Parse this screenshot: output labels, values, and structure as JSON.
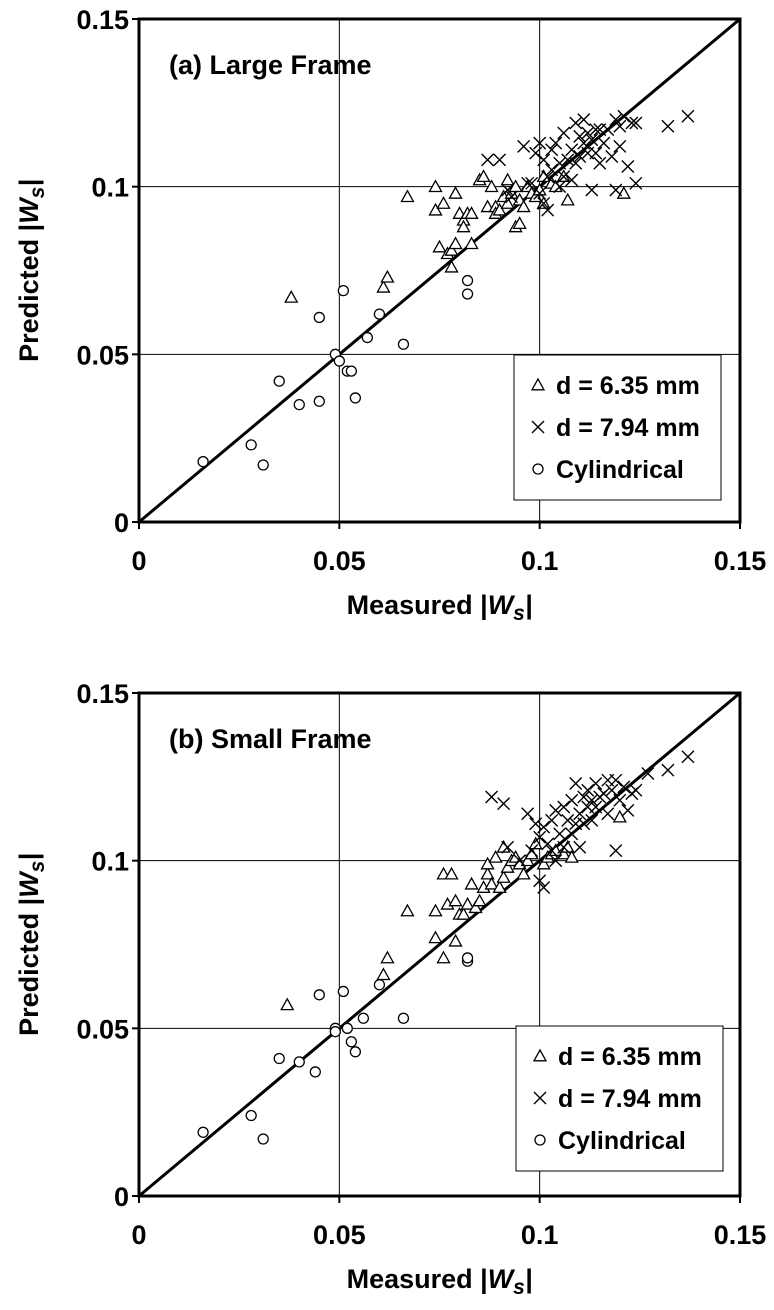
{
  "chart_data": [
    {
      "type": "scatter",
      "title": "(a) Large Frame",
      "xlabel_main": "Measured |",
      "xlabel_var": "W",
      "xlabel_sub": "s",
      "xlabel_end": "|",
      "ylabel_main": "Predicted |",
      "ylabel_var": "W",
      "ylabel_sub": "s",
      "ylabel_end": "|",
      "xlim": [
        0,
        0.15
      ],
      "ylim": [
        0,
        0.15
      ],
      "xticks": [
        "0",
        "0.05",
        "0.1",
        "0.15"
      ],
      "yticks": [
        "0",
        "0.05",
        "0.1",
        "0.15"
      ],
      "grid": "lines at 0.05 and 0.1",
      "reference_line": "y = x",
      "legend_position": "lower-right",
      "series": [
        {
          "name": "d = 6.35 mm",
          "marker": "triangle",
          "points": [
            [
              0.038,
              0.067
            ],
            [
              0.061,
              0.07
            ],
            [
              0.062,
              0.073
            ],
            [
              0.067,
              0.097
            ],
            [
              0.074,
              0.1
            ],
            [
              0.074,
              0.093
            ],
            [
              0.075,
              0.082
            ],
            [
              0.076,
              0.095
            ],
            [
              0.077,
              0.08
            ],
            [
              0.078,
              0.081
            ],
            [
              0.078,
              0.076
            ],
            [
              0.079,
              0.098
            ],
            [
              0.079,
              0.083
            ],
            [
              0.08,
              0.092
            ],
            [
              0.081,
              0.09
            ],
            [
              0.081,
              0.088
            ],
            [
              0.082,
              0.092
            ],
            [
              0.083,
              0.092
            ],
            [
              0.083,
              0.083
            ],
            [
              0.085,
              0.102
            ],
            [
              0.086,
              0.103
            ],
            [
              0.087,
              0.094
            ],
            [
              0.088,
              0.1
            ],
            [
              0.089,
              0.094
            ],
            [
              0.089,
              0.092
            ],
            [
              0.09,
              0.093
            ],
            [
              0.091,
              0.097
            ],
            [
              0.092,
              0.102
            ],
            [
              0.092,
              0.095
            ],
            [
              0.093,
              0.098
            ],
            [
              0.094,
              0.1
            ],
            [
              0.094,
              0.088
            ],
            [
              0.095,
              0.089
            ],
            [
              0.095,
              0.096
            ],
            [
              0.096,
              0.094
            ],
            [
              0.097,
              0.1
            ],
            [
              0.098,
              0.098
            ],
            [
              0.099,
              0.097
            ],
            [
              0.1,
              0.099
            ],
            [
              0.101,
              0.095
            ],
            [
              0.101,
              0.103
            ],
            [
              0.103,
              0.101
            ],
            [
              0.104,
              0.1
            ],
            [
              0.106,
              0.103
            ],
            [
              0.107,
              0.096
            ],
            [
              0.121,
              0.098
            ]
          ]
        },
        {
          "name": "d = 7.94 mm",
          "marker": "x",
          "points": [
            [
              0.087,
              0.108
            ],
            [
              0.09,
              0.108
            ],
            [
              0.092,
              0.099
            ],
            [
              0.093,
              0.097
            ],
            [
              0.096,
              0.112
            ],
            [
              0.097,
              0.101
            ],
            [
              0.098,
              0.101
            ],
            [
              0.099,
              0.11
            ],
            [
              0.1,
              0.098
            ],
            [
              0.1,
              0.113
            ],
            [
              0.101,
              0.095
            ],
            [
              0.101,
              0.108
            ],
            [
              0.102,
              0.093
            ],
            [
              0.102,
              0.103
            ],
            [
              0.103,
              0.111
            ],
            [
              0.103,
              0.105
            ],
            [
              0.104,
              0.113
            ],
            [
              0.105,
              0.1
            ],
            [
              0.105,
              0.107
            ],
            [
              0.106,
              0.103
            ],
            [
              0.106,
              0.116
            ],
            [
              0.107,
              0.108
            ],
            [
              0.108,
              0.111
            ],
            [
              0.108,
              0.102
            ],
            [
              0.109,
              0.119
            ],
            [
              0.109,
              0.107
            ],
            [
              0.11,
              0.109
            ],
            [
              0.11,
              0.115
            ],
            [
              0.111,
              0.12
            ],
            [
              0.111,
              0.113
            ],
            [
              0.112,
              0.11
            ],
            [
              0.112,
              0.116
            ],
            [
              0.113,
              0.114
            ],
            [
              0.113,
              0.099
            ],
            [
              0.114,
              0.11
            ],
            [
              0.114,
              0.117
            ],
            [
              0.115,
              0.107
            ],
            [
              0.115,
              0.117
            ],
            [
              0.116,
              0.113
            ],
            [
              0.117,
              0.117
            ],
            [
              0.118,
              0.109
            ],
            [
              0.119,
              0.099
            ],
            [
              0.119,
              0.12
            ],
            [
              0.12,
              0.118
            ],
            [
              0.12,
              0.112
            ],
            [
              0.121,
              0.121
            ],
            [
              0.122,
              0.106
            ],
            [
              0.123,
              0.119
            ],
            [
              0.124,
              0.101
            ],
            [
              0.124,
              0.119
            ],
            [
              0.132,
              0.118
            ],
            [
              0.137,
              0.121
            ]
          ]
        },
        {
          "name": "Cylindrical",
          "marker": "circle",
          "points": [
            [
              0.016,
              0.018
            ],
            [
              0.028,
              0.023
            ],
            [
              0.031,
              0.017
            ],
            [
              0.035,
              0.042
            ],
            [
              0.04,
              0.035
            ],
            [
              0.045,
              0.036
            ],
            [
              0.045,
              0.061
            ],
            [
              0.049,
              0.05
            ],
            [
              0.05,
              0.048
            ],
            [
              0.051,
              0.069
            ],
            [
              0.052,
              0.045
            ],
            [
              0.053,
              0.045
            ],
            [
              0.054,
              0.037
            ],
            [
              0.057,
              0.055
            ],
            [
              0.06,
              0.062
            ],
            [
              0.066,
              0.053
            ],
            [
              0.082,
              0.072
            ],
            [
              0.082,
              0.068
            ]
          ]
        }
      ]
    },
    {
      "type": "scatter",
      "title": "(b) Small Frame",
      "xlabel_main": "Measured |",
      "xlabel_var": "W",
      "xlabel_sub": "s",
      "xlabel_end": "|",
      "ylabel_main": "Predicted |",
      "ylabel_var": "W",
      "ylabel_sub": "s",
      "ylabel_end": "|",
      "xlim": [
        0,
        0.15
      ],
      "ylim": [
        0,
        0.15
      ],
      "xticks": [
        "0",
        "0.05",
        "0.1",
        "0.15"
      ],
      "yticks": [
        "0",
        "0.05",
        "0.1",
        "0.15"
      ],
      "grid": "lines at 0.05 and 0.1",
      "reference_line": "y = x",
      "legend_position": "lower-right",
      "series": [
        {
          "name": "d = 6.35 mm",
          "marker": "triangle",
          "points": [
            [
              0.037,
              0.057
            ],
            [
              0.061,
              0.066
            ],
            [
              0.062,
              0.071
            ],
            [
              0.067,
              0.085
            ],
            [
              0.074,
              0.077
            ],
            [
              0.074,
              0.085
            ],
            [
              0.076,
              0.071
            ],
            [
              0.076,
              0.096
            ],
            [
              0.077,
              0.087
            ],
            [
              0.078,
              0.096
            ],
            [
              0.079,
              0.076
            ],
            [
              0.079,
              0.088
            ],
            [
              0.08,
              0.084
            ],
            [
              0.081,
              0.084
            ],
            [
              0.082,
              0.087
            ],
            [
              0.083,
              0.093
            ],
            [
              0.084,
              0.086
            ],
            [
              0.085,
              0.088
            ],
            [
              0.086,
              0.092
            ],
            [
              0.087,
              0.096
            ],
            [
              0.087,
              0.099
            ],
            [
              0.088,
              0.093
            ],
            [
              0.089,
              0.101
            ],
            [
              0.09,
              0.092
            ],
            [
              0.091,
              0.095
            ],
            [
              0.091,
              0.104
            ],
            [
              0.092,
              0.098
            ],
            [
              0.093,
              0.1
            ],
            [
              0.094,
              0.101
            ],
            [
              0.095,
              0.099
            ],
            [
              0.096,
              0.096
            ],
            [
              0.097,
              0.1
            ],
            [
              0.098,
              0.102
            ],
            [
              0.099,
              0.105
            ],
            [
              0.101,
              0.099
            ],
            [
              0.102,
              0.101
            ],
            [
              0.103,
              0.102
            ],
            [
              0.104,
              0.103
            ],
            [
              0.106,
              0.102
            ],
            [
              0.107,
              0.104
            ],
            [
              0.108,
              0.101
            ],
            [
              0.12,
              0.113
            ]
          ]
        },
        {
          "name": "d = 7.94 mm",
          "marker": "x",
          "points": [
            [
              0.088,
              0.119
            ],
            [
              0.091,
              0.117
            ],
            [
              0.092,
              0.104
            ],
            [
              0.095,
              0.1
            ],
            [
              0.097,
              0.114
            ],
            [
              0.098,
              0.103
            ],
            [
              0.099,
              0.111
            ],
            [
              0.1,
              0.094
            ],
            [
              0.1,
              0.107
            ],
            [
              0.101,
              0.092
            ],
            [
              0.101,
              0.11
            ],
            [
              0.102,
              0.105
            ],
            [
              0.103,
              0.103
            ],
            [
              0.103,
              0.112
            ],
            [
              0.104,
              0.115
            ],
            [
              0.104,
              0.1
            ],
            [
              0.105,
              0.108
            ],
            [
              0.106,
              0.104
            ],
            [
              0.106,
              0.116
            ],
            [
              0.107,
              0.112
            ],
            [
              0.108,
              0.118
            ],
            [
              0.108,
              0.108
            ],
            [
              0.109,
              0.123
            ],
            [
              0.109,
              0.111
            ],
            [
              0.11,
              0.114
            ],
            [
              0.11,
              0.104
            ],
            [
              0.111,
              0.119
            ],
            [
              0.111,
              0.111
            ],
            [
              0.112,
              0.116
            ],
            [
              0.112,
              0.121
            ],
            [
              0.113,
              0.112
            ],
            [
              0.113,
              0.118
            ],
            [
              0.114,
              0.116
            ],
            [
              0.114,
              0.123
            ],
            [
              0.115,
              0.119
            ],
            [
              0.116,
              0.12
            ],
            [
              0.117,
              0.114
            ],
            [
              0.117,
              0.124
            ],
            [
              0.118,
              0.121
            ],
            [
              0.119,
              0.103
            ],
            [
              0.119,
              0.124
            ],
            [
              0.12,
              0.118
            ],
            [
              0.121,
              0.122
            ],
            [
              0.122,
              0.115
            ],
            [
              0.123,
              0.12
            ],
            [
              0.124,
              0.121
            ],
            [
              0.127,
              0.126
            ],
            [
              0.132,
              0.127
            ],
            [
              0.137,
              0.131
            ]
          ]
        },
        {
          "name": "Cylindrical",
          "marker": "circle",
          "points": [
            [
              0.016,
              0.019
            ],
            [
              0.028,
              0.024
            ],
            [
              0.031,
              0.017
            ],
            [
              0.035,
              0.041
            ],
            [
              0.04,
              0.04
            ],
            [
              0.044,
              0.037
            ],
            [
              0.045,
              0.06
            ],
            [
              0.049,
              0.05
            ],
            [
              0.049,
              0.049
            ],
            [
              0.051,
              0.061
            ],
            [
              0.052,
              0.05
            ],
            [
              0.053,
              0.046
            ],
            [
              0.054,
              0.043
            ],
            [
              0.056,
              0.053
            ],
            [
              0.06,
              0.063
            ],
            [
              0.066,
              0.053
            ],
            [
              0.082,
              0.07
            ],
            [
              0.082,
              0.071
            ]
          ]
        }
      ]
    }
  ]
}
